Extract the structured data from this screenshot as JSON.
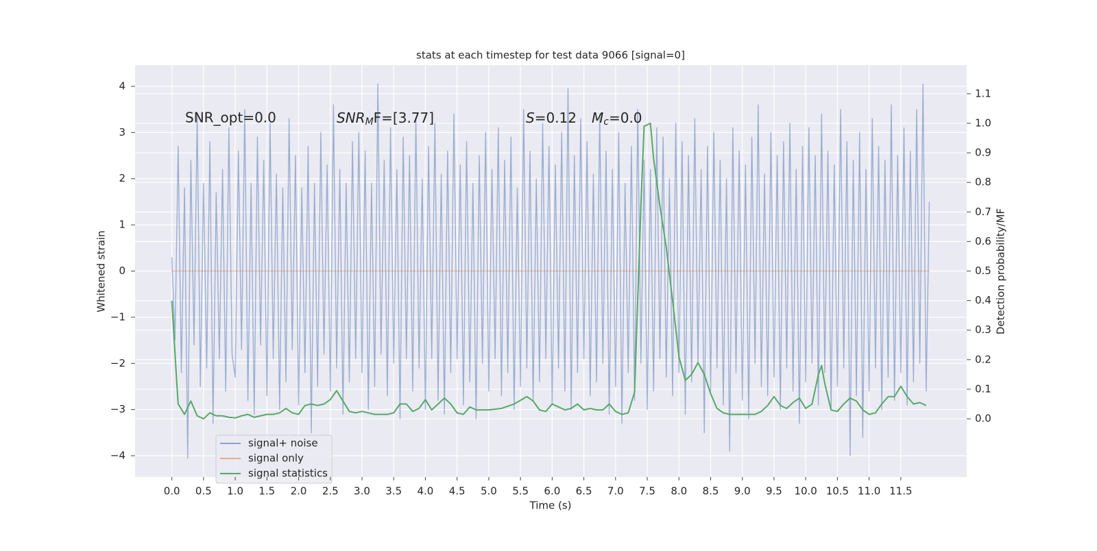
{
  "chart_data": {
    "type": "line",
    "title": "stats at each timestep for test data 9066 [signal=0]",
    "xlabel": "Time (s)",
    "ylabel": "Whitened strain",
    "y2label": "Detection probability/MF",
    "xlim": [
      -0.58,
      12.54
    ],
    "ylim": [
      -4.46,
      4.46
    ],
    "y2lim": [
      -0.197,
      1.197
    ],
    "grid": true,
    "legend": "lower left",
    "xticks": [
      {
        "value": 0,
        "label": "0.0"
      },
      0.5,
      {
        "value": 1,
        "label": "1.0"
      },
      1.5,
      {
        "value": 2,
        "label": "2.0"
      },
      2.5,
      {
        "value": 3,
        "label": "3.0"
      },
      3.5,
      {
        "value": 4,
        "label": "4.0"
      },
      4.5,
      {
        "value": 5,
        "label": "5.0"
      },
      5.5,
      {
        "value": 6,
        "label": "6.0"
      },
      6.5,
      {
        "value": 7,
        "label": "7.0"
      },
      7.5,
      {
        "value": 8,
        "label": "8.0"
      },
      8.5,
      {
        "value": 9,
        "label": "9.0"
      },
      9.5,
      {
        "value": 10,
        "label": "10.0"
      },
      10.5,
      {
        "value": 11,
        "label": "11.0"
      },
      11.5
    ],
    "yticks": [
      {
        "value": -4,
        "label": "−4"
      },
      {
        "value": -3,
        "label": "−3"
      },
      {
        "value": -2,
        "label": "−2"
      },
      {
        "value": -1,
        "label": "−1"
      },
      0,
      1,
      2,
      3,
      4
    ],
    "y2ticks": [
      {
        "value": 0,
        "label": "0.0"
      },
      0.1,
      0.2,
      0.3,
      0.4,
      0.5,
      0.6,
      0.7,
      0.8,
      0.9,
      {
        "value": 1,
        "label": "1.0"
      },
      1.1
    ],
    "annotations": [
      [
        "SNR_opt=0.0"
      ],
      [
        "SNR",
        "M",
        "F=[3.77]"
      ],
      [
        "S",
        "=0.12",
        "M",
        "c",
        "=0.0"
      ]
    ],
    "series": [
      {
        "name": "signal+ noise",
        "color": "#4c72b0",
        "x": [
          0.0,
          0.05,
          0.1,
          0.15,
          0.2,
          0.25,
          0.3,
          0.35,
          0.4,
          0.45,
          0.5,
          0.55,
          0.6,
          0.65,
          0.7,
          0.75,
          0.8,
          0.85,
          0.9,
          0.95,
          1.0,
          1.05,
          1.1,
          1.15,
          1.2,
          1.25,
          1.3,
          1.35,
          1.4,
          1.45,
          1.5,
          1.55,
          1.6,
          1.65,
          1.7,
          1.75,
          1.8,
          1.85,
          1.9,
          1.95,
          2.0,
          2.05,
          2.1,
          2.15,
          2.2,
          2.25,
          2.3,
          2.35,
          2.4,
          2.45,
          2.5,
          2.55,
          2.6,
          2.65,
          2.7,
          2.75,
          2.8,
          2.85,
          2.9,
          2.95,
          3.0,
          3.05,
          3.1,
          3.15,
          3.2,
          3.25,
          3.3,
          3.35,
          3.4,
          3.45,
          3.5,
          3.55,
          3.6,
          3.65,
          3.7,
          3.75,
          3.8,
          3.85,
          3.9,
          3.95,
          4.0,
          4.05,
          4.1,
          4.15,
          4.2,
          4.25,
          4.3,
          4.35,
          4.4,
          4.45,
          4.5,
          4.55,
          4.6,
          4.65,
          4.7,
          4.75,
          4.8,
          4.85,
          4.9,
          4.95,
          5.0,
          5.05,
          5.1,
          5.15,
          5.2,
          5.25,
          5.3,
          5.35,
          5.4,
          5.45,
          5.5,
          5.55,
          5.6,
          5.65,
          5.7,
          5.75,
          5.8,
          5.85,
          5.9,
          5.95,
          6.0,
          6.05,
          6.1,
          6.15,
          6.2,
          6.25,
          6.3,
          6.35,
          6.4,
          6.45,
          6.5,
          6.55,
          6.6,
          6.65,
          6.7,
          6.75,
          6.8,
          6.85,
          6.9,
          6.95,
          7.0,
          7.05,
          7.1,
          7.15,
          7.2,
          7.25,
          7.3,
          7.35,
          7.4,
          7.45,
          7.5,
          7.55,
          7.6,
          7.65,
          7.7,
          7.75,
          7.8,
          7.85,
          7.9,
          7.95,
          8.0,
          8.05,
          8.1,
          8.15,
          8.2,
          8.25,
          8.3,
          8.35,
          8.4,
          8.45,
          8.5,
          8.55,
          8.6,
          8.65,
          8.7,
          8.75,
          8.8,
          8.85,
          8.9,
          8.95,
          9.0,
          9.05,
          9.1,
          9.15,
          9.2,
          9.25,
          9.3,
          9.35,
          9.4,
          9.45,
          9.5,
          9.55,
          9.6,
          9.65,
          9.7,
          9.75,
          9.8,
          9.85,
          9.9,
          9.95,
          10.0,
          10.05,
          10.1,
          10.15,
          10.2,
          10.25,
          10.3,
          10.35,
          10.4,
          10.45,
          10.5,
          10.55,
          10.6,
          10.65,
          10.7,
          10.75,
          10.8,
          10.85,
          10.9,
          10.95,
          11.0,
          11.05,
          11.1,
          11.15,
          11.2,
          11.25,
          11.3,
          11.35,
          11.4,
          11.45,
          11.5,
          11.55,
          11.6,
          11.65,
          11.7,
          11.75,
          11.8,
          11.85,
          11.9,
          11.95
        ],
        "values": [
          0.3,
          -1.5,
          2.7,
          -2.2,
          1.8,
          -4.05,
          2.4,
          -1.6,
          3.4,
          -2.5,
          1.9,
          -2.1,
          2.8,
          -3.3,
          1.7,
          -1.9,
          2.2,
          -2.6,
          3.1,
          -1.8,
          -2.3,
          2.6,
          -1.7,
          3.5,
          -2.8,
          1.9,
          -3.1,
          2.9,
          -1.6,
          2.4,
          -2.7,
          3.2,
          -1.9,
          2.1,
          -3.0,
          1.8,
          -2.4,
          3.3,
          -1.7,
          2.5,
          -2.9,
          1.8,
          -2.2,
          2.7,
          -3.5,
          1.9,
          -2.5,
          3.0,
          -1.8,
          2.3,
          -2.6,
          3.6,
          -2.1,
          2.2,
          -3.1,
          1.9,
          -2.4,
          2.8,
          -1.9,
          3.0,
          -2.2,
          2.6,
          -3.0,
          1.9,
          -2.5,
          4.05,
          -1.8,
          2.4,
          -2.7,
          3.1,
          -2.0,
          2.2,
          -3.2,
          2.9,
          -1.9,
          2.5,
          -2.6,
          3.3,
          -2.1,
          2.0,
          -3.0,
          2.7,
          -1.9,
          3.2,
          -2.8,
          2.1,
          -3.1,
          2.6,
          -2.2,
          3.4,
          -1.9,
          2.3,
          -2.9,
          2.8,
          -2.4,
          1.9,
          -3.2,
          2.5,
          -2.0,
          3.0,
          -2.6,
          2.2,
          -1.9,
          3.1,
          -2.7,
          2.4,
          -2.2,
          2.9,
          -3.0,
          1.8,
          -2.5,
          3.5,
          -2.1,
          2.6,
          -2.8,
          2.0,
          -2.4,
          3.2,
          -1.9,
          2.7,
          -2.9,
          2.3,
          -2.1,
          3.0,
          -2.6,
          3.95,
          -3.0,
          2.5,
          -2.2,
          3.3,
          -1.9,
          2.8,
          -2.7,
          2.1,
          -2.4,
          3.4,
          -2.0,
          2.6,
          -3.1,
          2.2,
          -2.5,
          3.0,
          -3.3,
          1.9,
          -2.2,
          2.7,
          -2.8,
          3.5,
          -2.0,
          2.4,
          -3.0,
          2.2,
          -2.6,
          3.1,
          -1.9,
          2.9,
          -2.3,
          2.0,
          -2.7,
          3.2,
          -2.2,
          2.8,
          -3.1,
          2.5,
          -2.4,
          3.3,
          -2.0,
          2.2,
          -3.5,
          2.7,
          -2.6,
          3.0,
          -2.1,
          2.4,
          -2.9,
          2.0,
          -3.9,
          3.1,
          -2.2,
          2.6,
          -2.8,
          2.3,
          -3.2,
          2.9,
          -2.0,
          3.6,
          -2.5,
          2.1,
          -2.7,
          3.0,
          -2.3,
          2.5,
          -3.0,
          2.8,
          -2.1,
          3.2,
          -2.6,
          2.2,
          -3.3,
          2.7,
          -2.4,
          3.1,
          -2.0,
          2.5,
          -2.9,
          3.4,
          -2.2,
          2.6,
          -3.0,
          2.3,
          -2.5,
          3.5,
          -2.1,
          2.8,
          -4.0,
          2.4,
          -2.7,
          3.0,
          -3.6,
          2.2,
          -2.6,
          3.3,
          -2.1,
          2.7,
          -3.0,
          2.4,
          -2.3,
          3.6,
          -2.8,
          2.5,
          -2.2,
          3.1,
          -2.9,
          2.6,
          -2.4,
          3.5,
          -2.0,
          4.05,
          -2.6,
          1.5
        ]
      },
      {
        "name": "signal only",
        "color": "#dd8452",
        "x": [
          0.0,
          11.95
        ],
        "values": [
          0,
          0
        ]
      },
      {
        "name": "signal statistics",
        "color": "#55a868",
        "axis": "y2",
        "x": [
          0.0,
          0.07,
          0.1,
          0.2,
          0.3,
          0.4,
          0.5,
          0.6,
          0.7,
          0.8,
          0.9,
          1.0,
          1.1,
          1.2,
          1.3,
          1.4,
          1.5,
          1.6,
          1.7,
          1.8,
          1.9,
          2.0,
          2.1,
          2.2,
          2.3,
          2.4,
          2.5,
          2.6,
          2.7,
          2.8,
          2.9,
          3.0,
          3.1,
          3.2,
          3.4,
          3.5,
          3.6,
          3.7,
          3.8,
          3.9,
          4.0,
          4.1,
          4.2,
          4.3,
          4.4,
          4.5,
          4.6,
          4.7,
          4.8,
          4.9,
          5.0,
          5.2,
          5.4,
          5.6,
          5.7,
          5.8,
          5.9,
          6.0,
          6.1,
          6.2,
          6.3,
          6.4,
          6.5,
          6.6,
          6.7,
          6.8,
          6.9,
          7.0,
          7.1,
          7.2,
          7.3,
          7.4,
          7.45,
          7.55,
          7.6,
          7.7,
          7.8,
          7.9,
          8.0,
          8.1,
          8.2,
          8.3,
          8.4,
          8.5,
          8.6,
          8.7,
          8.8,
          9.0,
          9.2,
          9.3,
          9.4,
          9.5,
          9.6,
          9.7,
          9.8,
          9.9,
          10.0,
          10.1,
          10.2,
          10.25,
          10.3,
          10.4,
          10.5,
          10.6,
          10.7,
          10.8,
          10.9,
          11.0,
          11.1,
          11.2,
          11.3,
          11.4,
          11.5,
          11.6,
          11.7,
          11.8,
          11.9
        ],
        "values": [
          0.4,
          0.15,
          0.05,
          0.015,
          0.06,
          0.01,
          0.0,
          0.02,
          0.01,
          0.01,
          0.005,
          0.003,
          0.01,
          0.015,
          0.005,
          0.01,
          0.015,
          0.015,
          0.02,
          0.035,
          0.02,
          0.015,
          0.045,
          0.05,
          0.045,
          0.05,
          0.065,
          0.095,
          0.06,
          0.025,
          0.02,
          0.025,
          0.02,
          0.015,
          0.015,
          0.02,
          0.05,
          0.05,
          0.025,
          0.035,
          0.065,
          0.03,
          0.05,
          0.07,
          0.05,
          0.02,
          0.015,
          0.04,
          0.03,
          0.03,
          0.03,
          0.035,
          0.05,
          0.075,
          0.06,
          0.03,
          0.025,
          0.05,
          0.04,
          0.03,
          0.035,
          0.05,
          0.03,
          0.035,
          0.03,
          0.03,
          0.05,
          0.025,
          0.015,
          0.02,
          0.09,
          0.72,
          0.99,
          1.0,
          0.88,
          0.72,
          0.58,
          0.4,
          0.21,
          0.13,
          0.15,
          0.19,
          0.15,
          0.085,
          0.035,
          0.02,
          0.015,
          0.015,
          0.015,
          0.025,
          0.045,
          0.075,
          0.045,
          0.035,
          0.055,
          0.07,
          0.035,
          0.05,
          0.15,
          0.18,
          0.12,
          0.03,
          0.025,
          0.05,
          0.07,
          0.06,
          0.03,
          0.015,
          0.02,
          0.05,
          0.075,
          0.075,
          0.11,
          0.075,
          0.05,
          0.055,
          0.045
        ]
      }
    ]
  }
}
